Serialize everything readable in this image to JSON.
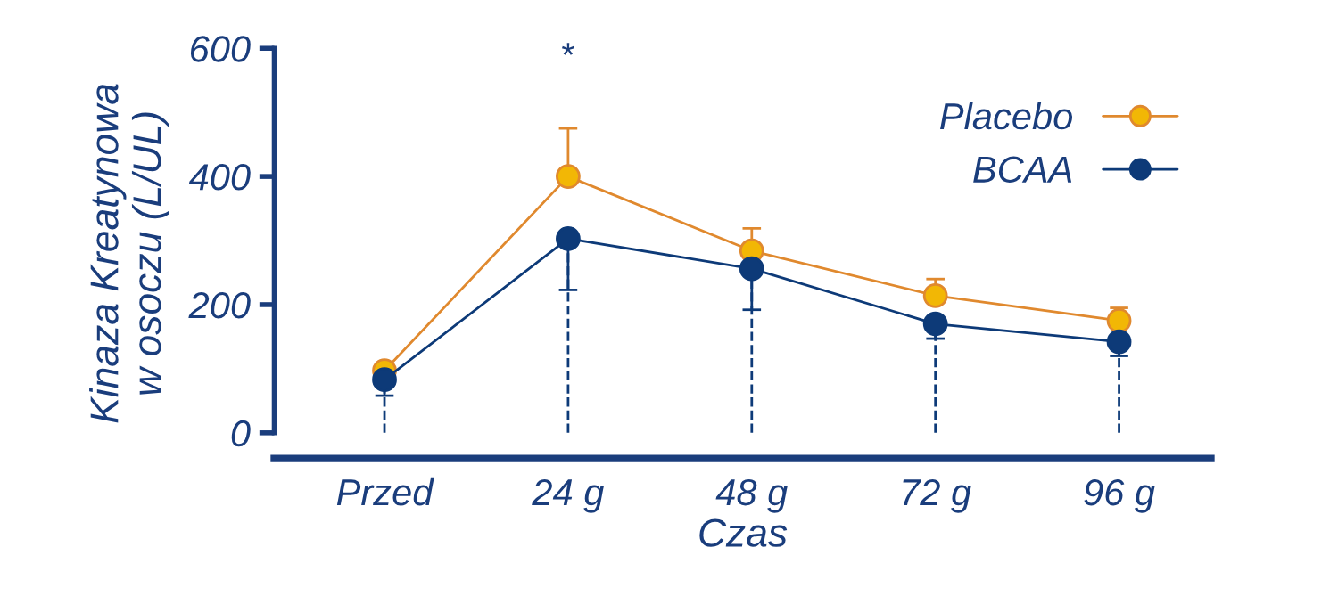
{
  "chart_data": {
    "type": "line",
    "xlabel": "Czas",
    "ylabel": "Kinaza Kreatynowa\nw osoczu (L/UL)",
    "categories": [
      "Przed",
      "24 g",
      "48 g",
      "72 g",
      "96 g"
    ],
    "series": [
      {
        "name": "Placebo",
        "color": "#e0892e",
        "values": [
          97,
          400,
          284,
          214,
          175
        ],
        "errors": [
          [
            97,
            107
          ],
          [
            400,
            475
          ],
          [
            284,
            319
          ],
          [
            214,
            240
          ],
          [
            175,
            195
          ]
        ]
      },
      {
        "name": "BCAA",
        "color": "#0d3a78",
        "values": [
          83,
          303,
          256,
          170,
          142
        ],
        "errors": [
          [
            58,
            83
          ],
          [
            223,
            303
          ],
          [
            192,
            256
          ],
          [
            147,
            170
          ],
          [
            120,
            142
          ]
        ]
      }
    ],
    "ylim": [
      -40,
      600
    ],
    "yticks": [
      0,
      200,
      400,
      600
    ],
    "marker": "circle",
    "line_style": "solid",
    "legend": "top right",
    "grid": false,
    "ref_lines": [
      {
        "axis": "x",
        "value": "Przed",
        "line_style": "dashed",
        "color": "#0d3a78"
      },
      {
        "axis": "x",
        "value": "24 g",
        "line_style": "dashed",
        "color": "#0d3a78"
      },
      {
        "axis": "x",
        "value": "48 g",
        "line_style": "dashed",
        "color": "#0d3a78"
      },
      {
        "axis": "x",
        "value": "72 g",
        "line_style": "dashed",
        "color": "#0d3a78"
      },
      {
        "axis": "x",
        "value": "96 g",
        "line_style": "dashed",
        "color": "#0d3a78"
      }
    ],
    "annotations": [
      "*"
    ]
  }
}
